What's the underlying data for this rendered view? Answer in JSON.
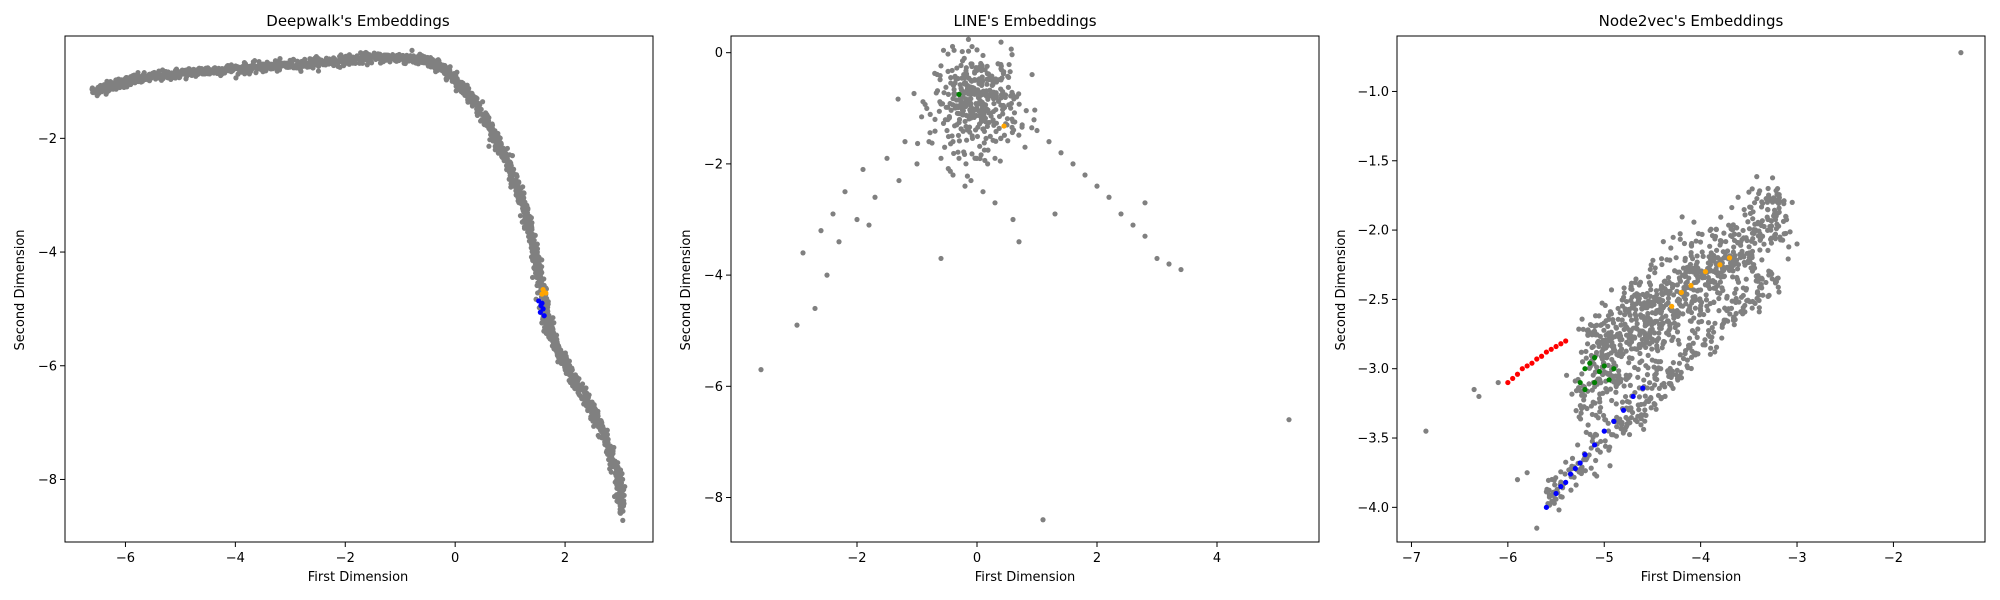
{
  "figure": {
    "background": "#ffffff"
  },
  "colors": {
    "base": "#808080",
    "highlight": [
      "#0000ff",
      "#ffa500",
      "#008000",
      "#ff0000"
    ]
  },
  "chart_data": [
    {
      "type": "scatter",
      "title": "Deepwalk's Embeddings",
      "xlabel": "First Dimension",
      "ylabel": "Second Dimension",
      "xlim": [
        -7.1,
        3.6
      ],
      "ylim": [
        -9.1,
        -0.2
      ],
      "xticks": [
        -6,
        -4,
        -2,
        0,
        2
      ],
      "yticks": [
        -8,
        -6,
        -4,
        -2
      ],
      "series": [
        {
          "color": "#808080",
          "trace": [
            [
              -6.6,
              -1.18
            ],
            [
              -6.2,
              -1.05
            ],
            [
              -5.8,
              -0.96
            ],
            [
              -5.2,
              -0.88
            ],
            [
              -4.6,
              -0.82
            ],
            [
              -4.0,
              -0.78
            ],
            [
              -3.4,
              -0.74
            ],
            [
              -2.8,
              -0.69
            ],
            [
              -2.2,
              -0.64
            ],
            [
              -1.6,
              -0.59
            ],
            [
              -1.0,
              -0.58
            ],
            [
              -0.6,
              -0.62
            ],
            [
              -0.3,
              -0.72
            ],
            [
              0.0,
              -0.95
            ],
            [
              0.4,
              -1.4
            ],
            [
              0.8,
              -2.1
            ],
            [
              1.1,
              -2.8
            ],
            [
              1.3,
              -3.4
            ],
            [
              1.45,
              -4.0
            ],
            [
              1.55,
              -4.5
            ],
            [
              1.65,
              -5.1
            ],
            [
              1.8,
              -5.6
            ],
            [
              2.0,
              -6.0
            ],
            [
              2.4,
              -6.6
            ],
            [
              2.7,
              -7.2
            ],
            [
              2.95,
              -7.9
            ],
            [
              3.05,
              -8.6
            ]
          ],
          "points": [
            [
              3.05,
              -8.72
            ],
            [
              2.9,
              -8.3
            ],
            [
              1.5,
              -4.2
            ],
            [
              2.2,
              -6.2
            ]
          ]
        },
        {
          "color": "#0000ff",
          "points": [
            [
              1.52,
              -4.86
            ],
            [
              1.56,
              -4.94
            ],
            [
              1.6,
              -5.0
            ],
            [
              1.55,
              -5.06
            ],
            [
              1.62,
              -5.12
            ],
            [
              1.58,
              -4.9
            ]
          ]
        },
        {
          "color": "#ffa500",
          "points": [
            [
              1.6,
              -4.66
            ],
            [
              1.65,
              -4.72
            ],
            [
              1.58,
              -4.74
            ]
          ]
        }
      ]
    },
    {
      "type": "scatter",
      "title": "LINE's Embeddings",
      "xlabel": "First Dimension",
      "ylabel": "Second Dimension",
      "xlim": [
        -4.1,
        5.7
      ],
      "ylim": [
        -8.8,
        0.3
      ],
      "xticks": [
        -2,
        0,
        2,
        4
      ],
      "yticks": [
        0,
        -2,
        -4,
        -6,
        -8
      ],
      "series": [
        {
          "color": "#808080",
          "points": [
            [
              -3.6,
              -5.7
            ],
            [
              -3.0,
              -4.9
            ],
            [
              -2.9,
              -3.6
            ],
            [
              -2.7,
              -4.6
            ],
            [
              -2.6,
              -3.2
            ],
            [
              -2.5,
              -4.0
            ],
            [
              -2.4,
              -2.9
            ],
            [
              -2.3,
              -3.4
            ],
            [
              -2.2,
              -2.5
            ],
            [
              -2.0,
              -3.0
            ],
            [
              -1.9,
              -2.1
            ],
            [
              -1.8,
              -3.1
            ],
            [
              -1.7,
              -2.6
            ],
            [
              -1.5,
              -1.9
            ],
            [
              -1.3,
              -2.3
            ],
            [
              -1.2,
              -1.6
            ],
            [
              -1.0,
              -2.0
            ],
            [
              -0.8,
              -1.6
            ],
            [
              -0.6,
              -1.9
            ],
            [
              -0.5,
              -1.4
            ],
            [
              -0.4,
              -2.2
            ],
            [
              -0.3,
              -1.9
            ],
            [
              -0.2,
              -2.4
            ],
            [
              -0.1,
              -2.3
            ],
            [
              0.1,
              -2.5
            ],
            [
              0.3,
              -2.7
            ],
            [
              0.6,
              -3.0
            ],
            [
              0.8,
              -1.7
            ],
            [
              1.0,
              -1.4
            ],
            [
              1.2,
              -1.6
            ],
            [
              1.4,
              -1.8
            ],
            [
              1.6,
              -2.0
            ],
            [
              1.8,
              -2.2
            ],
            [
              2.0,
              -2.4
            ],
            [
              2.2,
              -2.6
            ],
            [
              2.4,
              -2.9
            ],
            [
              2.6,
              -3.1
            ],
            [
              2.8,
              -3.3
            ],
            [
              3.0,
              -3.7
            ],
            [
              3.2,
              -3.8
            ],
            [
              3.4,
              -3.9
            ],
            [
              2.8,
              -2.7
            ],
            [
              -0.6,
              -3.7
            ],
            [
              0.7,
              -3.4
            ],
            [
              1.3,
              -2.9
            ],
            [
              1.1,
              -8.4
            ],
            [
              5.2,
              -6.6
            ],
            [
              0.0,
              0.05
            ],
            [
              0.1,
              -0.05
            ],
            [
              -0.1,
              -0.2
            ],
            [
              -0.7,
              -1.2
            ],
            [
              -0.4,
              -1.6
            ],
            [
              0.5,
              -1.3
            ],
            [
              0.3,
              -1.9
            ]
          ],
          "blob": {
            "center": [
              0.0,
              -0.9
            ],
            "sx": 0.35,
            "sy": 0.42,
            "n": 380
          }
        },
        {
          "color": "#ffa500",
          "points": [
            [
              0.45,
              -1.32
            ]
          ]
        },
        {
          "color": "#008000",
          "points": [
            [
              -0.3,
              -0.75
            ]
          ]
        }
      ]
    },
    {
      "type": "scatter",
      "title": "Node2vec's Embeddings",
      "xlabel": "First Dimension",
      "ylabel": "Second Dimension",
      "xlim": [
        -7.15,
        -1.05
      ],
      "ylim": [
        -4.25,
        -0.6
      ],
      "xticks": [
        -7,
        -6,
        -5,
        -4,
        -3,
        -2
      ],
      "yticks": [
        -1.0,
        -1.5,
        -2.0,
        -2.5,
        -3.0,
        -3.5,
        -4.0
      ],
      "series": [
        {
          "color": "#808080",
          "points": [
            [
              -1.3,
              -0.72
            ],
            [
              -6.85,
              -3.45
            ],
            [
              -6.35,
              -3.15
            ],
            [
              -6.3,
              -3.2
            ],
            [
              -6.1,
              -3.1
            ],
            [
              -5.9,
              -3.8
            ],
            [
              -5.8,
              -3.75
            ],
            [
              -5.7,
              -4.15
            ],
            [
              -3.0,
              -2.1
            ],
            [
              -3.05,
              -1.8
            ],
            [
              -3.3,
              -1.7
            ]
          ],
          "blobs": [
            {
              "from": [
                -5.2,
                -2.9
              ],
              "to": [
                -3.1,
                -1.85
              ],
              "width": 0.28,
              "n": 520
            },
            {
              "from": [
                -5.3,
                -3.3
              ],
              "to": [
                -3.5,
                -2.1
              ],
              "width": 0.3,
              "n": 420
            },
            {
              "from": [
                -5.6,
                -3.95
              ],
              "to": [
                -3.2,
                -2.3
              ],
              "width": 0.12,
              "n": 260
            }
          ]
        },
        {
          "color": "#0000ff",
          "points": [
            [
              -5.6,
              -4.0
            ],
            [
              -5.5,
              -3.9
            ],
            [
              -5.45,
              -3.85
            ],
            [
              -5.4,
              -3.82
            ],
            [
              -5.35,
              -3.76
            ],
            [
              -5.3,
              -3.72
            ],
            [
              -5.25,
              -3.68
            ],
            [
              -5.2,
              -3.62
            ],
            [
              -5.1,
              -3.55
            ],
            [
              -5.0,
              -3.45
            ],
            [
              -4.9,
              -3.38
            ],
            [
              -4.8,
              -3.3
            ],
            [
              -4.7,
              -3.2
            ],
            [
              -4.6,
              -3.14
            ]
          ]
        },
        {
          "color": "#ff0000",
          "points": [
            [
              -6.0,
              -3.1
            ],
            [
              -5.95,
              -3.07
            ],
            [
              -5.9,
              -3.04
            ],
            [
              -5.85,
              -3.0
            ],
            [
              -5.8,
              -2.98
            ],
            [
              -5.75,
              -2.96
            ],
            [
              -5.7,
              -2.93
            ],
            [
              -5.65,
              -2.91
            ],
            [
              -5.6,
              -2.88
            ],
            [
              -5.55,
              -2.86
            ],
            [
              -5.5,
              -2.84
            ],
            [
              -5.45,
              -2.82
            ],
            [
              -5.4,
              -2.8
            ]
          ]
        },
        {
          "color": "#008000",
          "points": [
            [
              -5.25,
              -3.1
            ],
            [
              -5.2,
              -3.0
            ],
            [
              -5.15,
              -2.96
            ],
            [
              -5.1,
              -3.1
            ],
            [
              -5.05,
              -3.02
            ],
            [
              -5.0,
              -2.98
            ],
            [
              -5.2,
              -3.15
            ],
            [
              -4.95,
              -3.08
            ],
            [
              -5.1,
              -2.92
            ],
            [
              -4.9,
              -3.0
            ]
          ]
        },
        {
          "color": "#ffa500",
          "points": [
            [
              -4.2,
              -2.45
            ],
            [
              -4.1,
              -2.4
            ],
            [
              -3.95,
              -2.3
            ],
            [
              -3.8,
              -2.25
            ],
            [
              -4.3,
              -2.55
            ],
            [
              -3.7,
              -2.2
            ]
          ]
        }
      ]
    }
  ]
}
